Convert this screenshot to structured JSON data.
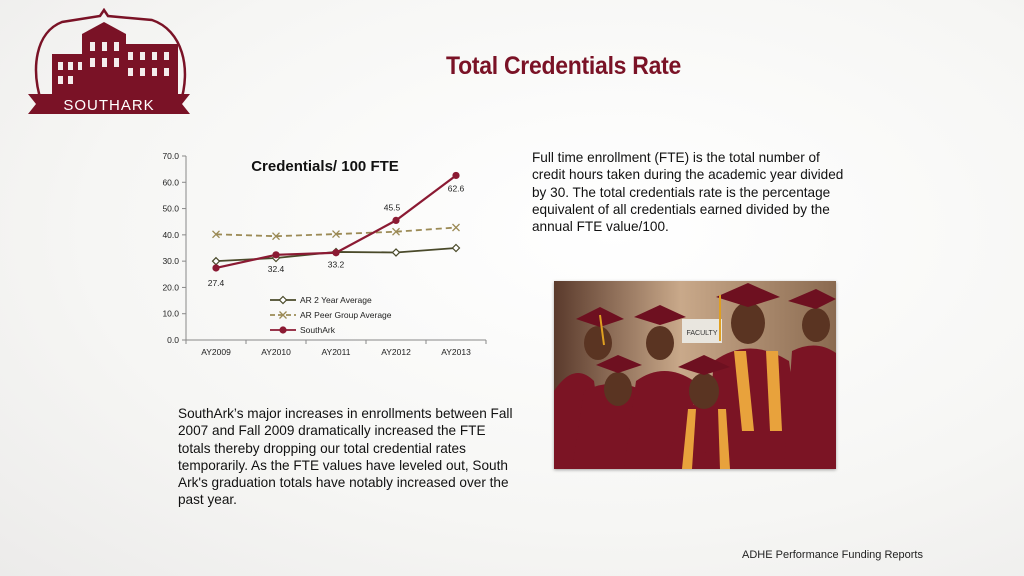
{
  "logo": {
    "text": "SOUTHARK"
  },
  "title": "Total Credentials Rate",
  "right_text": "Full time enrollment (FTE) is the total number of credit hours taken during the academic year divided by 30.   The total credentials rate is the percentage equivalent of all credentials earned divided by the annual FTE value/100.",
  "bottom_text": "SouthArk’s major increases in enrollments between Fall 2007 and Fall 2009 dramatically increased the FTE totals thereby dropping our total credential rates temporarily.  As the FTE values have leveled out, South Ark's graduation totals have notably increased over the past year.",
  "photo": {
    "badge_text": "FACULTY"
  },
  "footer": "ADHE Performance Funding Reports",
  "chart_data": {
    "type": "line",
    "title": "Credentials/ 100 FTE",
    "categories": [
      "AY2009",
      "AY2010",
      "AY2011",
      "AY2012",
      "AY2013"
    ],
    "ylim": [
      0,
      70
    ],
    "yticks": [
      "0.0",
      "10.0",
      "20.0",
      "30.0",
      "40.0",
      "50.0",
      "60.0",
      "70.0"
    ],
    "legend_position": "center",
    "grid": false,
    "series": [
      {
        "name": "AR 2 Year Average",
        "values": [
          30.0,
          31.2,
          33.5,
          33.3,
          35.0
        ],
        "color": "#4a4a2a",
        "dash": "solid",
        "marker": "diamond",
        "labels": []
      },
      {
        "name": "AR Peer Group Average",
        "values": [
          40.2,
          39.5,
          40.3,
          41.2,
          42.8
        ],
        "color": "#9b8a55",
        "dash": "dashed",
        "marker": "x",
        "labels": []
      },
      {
        "name": "SouthArk",
        "values": [
          27.4,
          32.4,
          33.2,
          45.5,
          62.6
        ],
        "color": "#8b1a33",
        "dash": "solid",
        "marker": "circle",
        "labels": [
          "27.4",
          "32.4",
          "33.2",
          "45.5",
          "62.6"
        ]
      }
    ]
  },
  "colors": {
    "brand": "#7a1226",
    "gown": "#7b1424",
    "stole": "#e8a23c"
  }
}
